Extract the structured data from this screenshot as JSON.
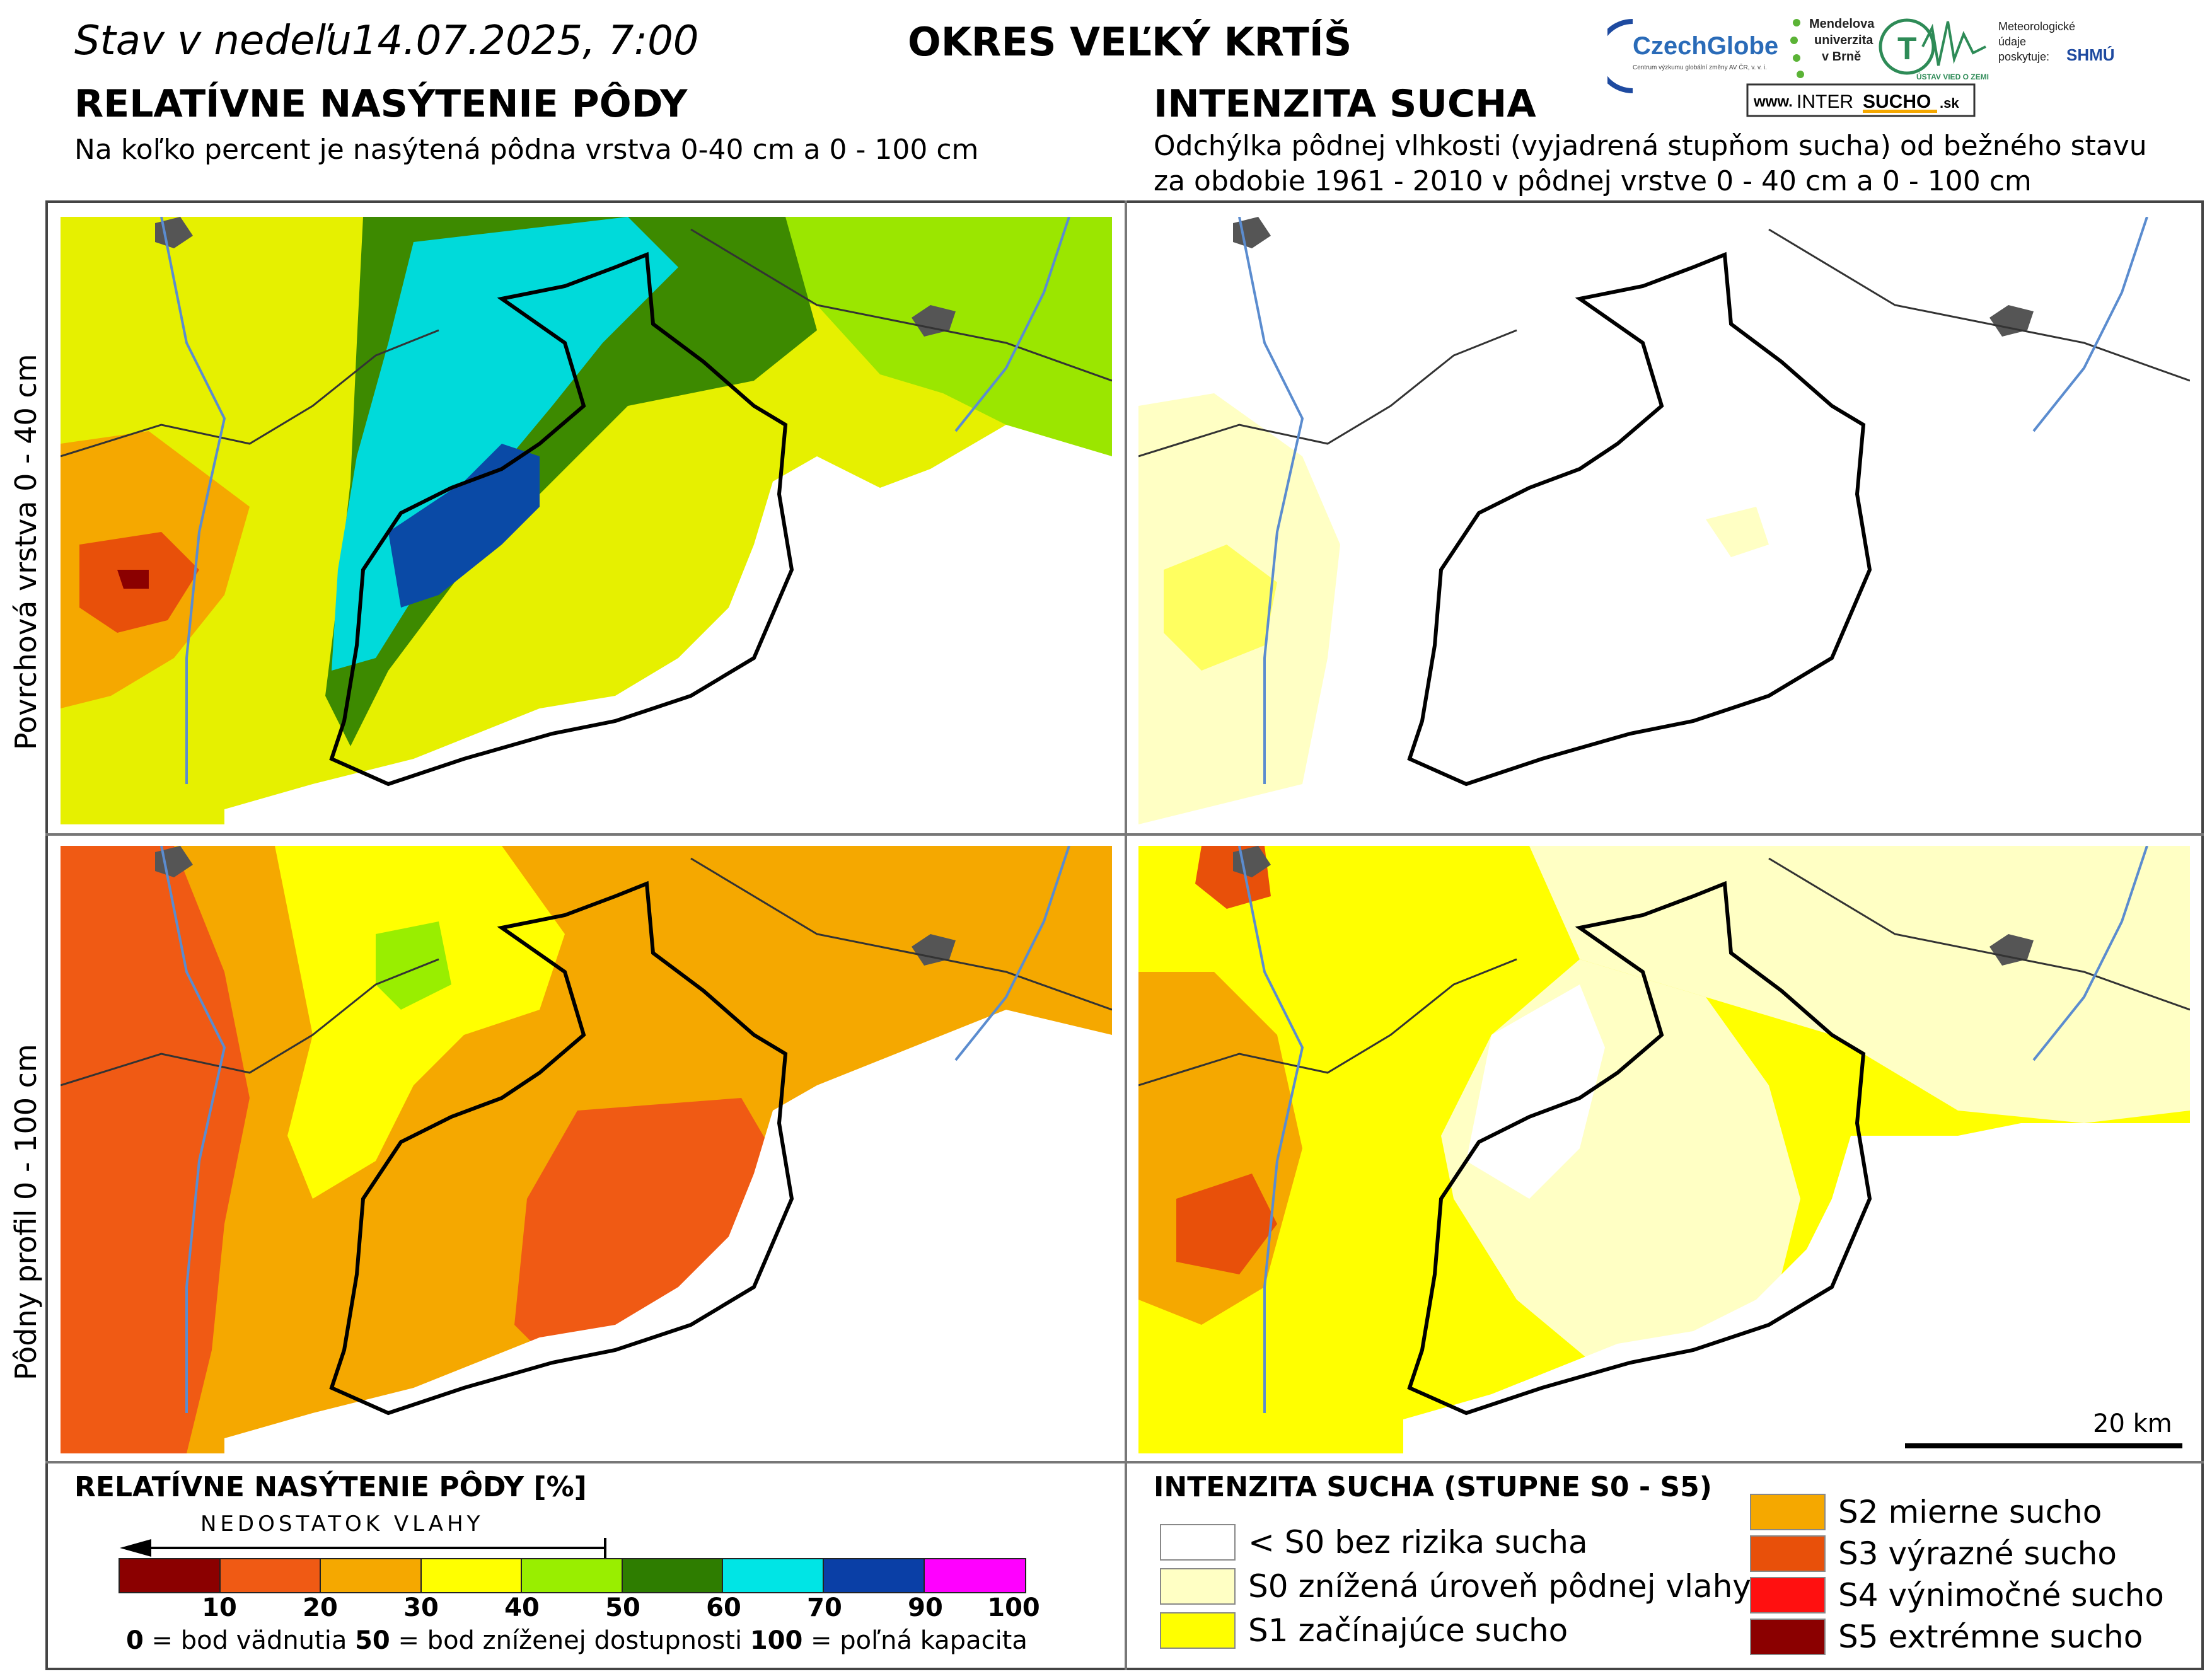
{
  "header": {
    "status_date": "Stav v nedeľu14.07.2025, 7:00",
    "district": "OKRES  VEĽKÝ KRTÍŠ"
  },
  "left_panel": {
    "title": "RELATÍVNE NASÝTENIE PÔDY",
    "subtitle": "Na koľko percent je nasýtená pôdna vrstva 0-40 cm a 0 - 100 cm"
  },
  "right_panel": {
    "title": "INTENZITA SUCHA",
    "subtitle_line1": "Odchýlka pôdnej vlhkosti (vyjadrená stupňom sucha) od bežného stavu",
    "subtitle_line2": "za obdobie 1961 - 2010 v pôdnej vrstve 0 - 40 cm a 0 - 100 cm"
  },
  "logos": {
    "czechglobe": "CzechGlobe",
    "czechglobe_sub": "Centrum výzkumu globální změny AV ČR, v. v. i.",
    "mendel_1": "Mendelova",
    "mendel_2": "univerzita",
    "mendel_3": "v Brně",
    "uvz": "ÚSTAV VIED O ZEMI",
    "met_1": "Meteorologické",
    "met_2": "údaje",
    "met_3": "poskytuje:",
    "shmu": "SHMÚ",
    "intersucho_www": "www.",
    "intersucho_a": "INTER",
    "intersucho_b": "SUCHO",
    "intersucho_c": ".sk"
  },
  "rows": {
    "top": "Povrchová vrstva 0 - 40 cm",
    "bottom": "Pôdny profil 0 - 100 cm"
  },
  "scale": {
    "label": "20 km"
  },
  "legend_saturation": {
    "title": "RELATÍVNE NASÝTENIE PÔDY [%]",
    "arrow_label": "NEDOSTATOK VLAHY",
    "bins": [
      {
        "from": 0,
        "to": 10,
        "color": "#8b0000"
      },
      {
        "from": 10,
        "to": 20,
        "color": "#f05a14"
      },
      {
        "from": 20,
        "to": 30,
        "color": "#f5a800"
      },
      {
        "from": 30,
        "to": 40,
        "color": "#ffff00"
      },
      {
        "from": 40,
        "to": 50,
        "color": "#99ee00"
      },
      {
        "from": 50,
        "to": 60,
        "color": "#2e7d00"
      },
      {
        "from": 60,
        "to": 70,
        "color": "#00e5e5"
      },
      {
        "from": 70,
        "to": 90,
        "color": "#0a3fa6"
      },
      {
        "from": 90,
        "to": 100,
        "color": "#ff00ff"
      }
    ],
    "ticks": [
      "10",
      "20",
      "30",
      "40",
      "50",
      "60",
      "70",
      "90",
      "100"
    ],
    "def_0": "0",
    "def_0_text": " = bod vädnutia ",
    "def_50": "50",
    "def_50_text": " = bod zníženej dostupnosti ",
    "def_100": "100",
    "def_100_text": " = poľná kapacita"
  },
  "legend_drought": {
    "title": "INTENZITA SUCHA (STUPNE S0 - S5)",
    "items": [
      {
        "label": "< S0 bez rizika sucha",
        "color": "#ffffff"
      },
      {
        "label": "S0 znížená úroveň pôdnej vlahy",
        "color": "#ffffc4"
      },
      {
        "label": "S1 začínajúce sucho",
        "color": "#ffff00"
      },
      {
        "label": "S2 mierne sucho",
        "color": "#f5a800"
      },
      {
        "label": "S3 výrazné sucho",
        "color": "#e8500a"
      },
      {
        "label": "S4 výnimočné sucho",
        "color": "#ff1010"
      },
      {
        "label": "S5 extrémne sucho",
        "color": "#8b0000"
      }
    ]
  }
}
